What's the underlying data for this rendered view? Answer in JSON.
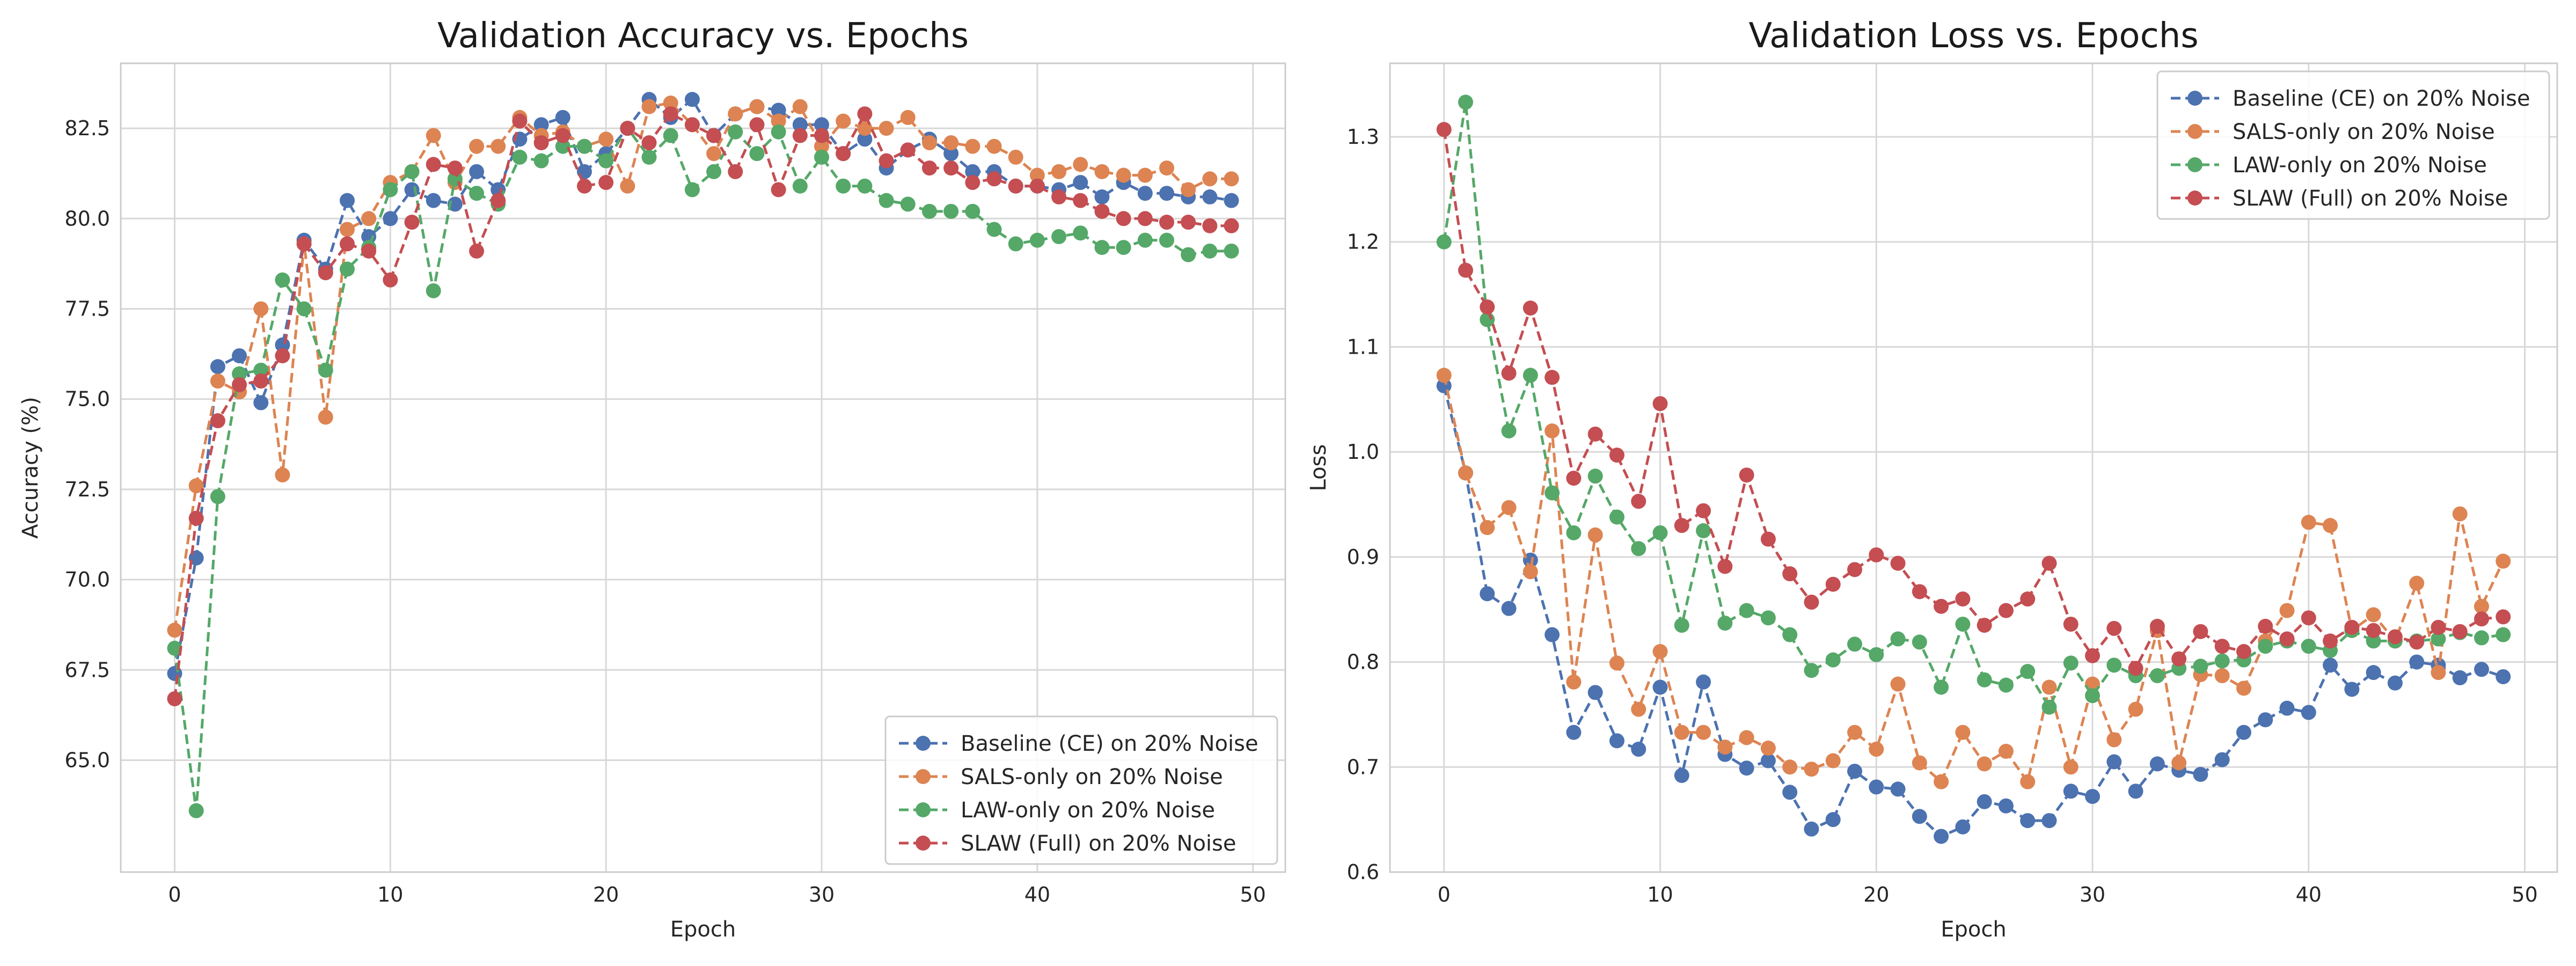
{
  "chart_data": [
    {
      "type": "line",
      "title": "Validation Accuracy vs. Epochs",
      "xlabel": "Epoch",
      "ylabel": "Accuracy (%)",
      "xlim": [
        -2.5,
        51.5
      ],
      "ylim": [
        61.9,
        84.3
      ],
      "xticks": [
        "0",
        "10",
        "20",
        "30",
        "40",
        "50"
      ],
      "yticks": [
        "65.0",
        "67.5",
        "70.0",
        "72.5",
        "75.0",
        "77.5",
        "80.0",
        "82.5"
      ],
      "grid": true,
      "legend_position": "lower-right",
      "series": [
        {
          "name": "Baseline (CE) on 20% Noise",
          "color": "#4c72b0",
          "values": [
            67.4,
            70.6,
            75.9,
            76.2,
            74.9,
            76.5,
            79.4,
            78.6,
            80.5,
            79.5,
            80.0,
            80.8,
            80.5,
            80.4,
            81.3,
            80.8,
            82.2,
            82.6,
            82.8,
            81.3,
            81.8,
            82.5,
            83.3,
            82.8,
            83.3,
            82.3,
            82.9,
            83.1,
            83.0,
            82.6,
            82.6,
            81.8,
            82.2,
            81.4,
            81.9,
            82.2,
            81.8,
            81.3,
            81.3,
            80.9,
            80.9,
            80.8,
            81.0,
            80.6,
            81.0,
            80.7,
            80.7,
            80.6,
            80.6,
            80.5
          ]
        },
        {
          "name": "SALS-only on 20% Noise",
          "color": "#dd8452",
          "values": [
            68.6,
            72.6,
            75.5,
            75.2,
            77.5,
            72.9,
            79.3,
            74.5,
            79.7,
            80.0,
            81.0,
            81.3,
            82.3,
            81.0,
            82.0,
            82.0,
            82.8,
            82.3,
            82.4,
            82.0,
            82.2,
            80.9,
            83.1,
            83.2,
            82.6,
            81.8,
            82.9,
            83.1,
            82.7,
            83.1,
            82.0,
            82.7,
            82.5,
            82.5,
            82.8,
            82.1,
            82.1,
            82.0,
            82.0,
            81.7,
            81.2,
            81.3,
            81.5,
            81.3,
            81.2,
            81.2,
            81.4,
            80.8,
            81.1,
            81.1
          ]
        },
        {
          "name": "LAW-only on 20% Noise",
          "color": "#55a868",
          "values": [
            68.1,
            63.6,
            72.3,
            75.7,
            75.8,
            78.3,
            77.5,
            75.8,
            78.6,
            79.2,
            80.8,
            81.3,
            78.0,
            81.1,
            80.7,
            80.4,
            81.7,
            81.6,
            82.0,
            82.0,
            81.6,
            82.5,
            81.7,
            82.3,
            80.8,
            81.3,
            82.4,
            81.8,
            82.4,
            80.9,
            81.7,
            80.9,
            80.9,
            80.5,
            80.4,
            80.2,
            80.2,
            80.2,
            79.7,
            79.3,
            79.4,
            79.5,
            79.6,
            79.2,
            79.2,
            79.4,
            79.4,
            79.0,
            79.1,
            79.1
          ]
        },
        {
          "name": "SLAW (Full) on 20% Noise",
          "color": "#c44e52",
          "values": [
            66.7,
            71.7,
            74.4,
            75.4,
            75.5,
            76.2,
            79.3,
            78.5,
            79.3,
            79.1,
            78.3,
            79.9,
            81.5,
            81.4,
            79.1,
            80.5,
            82.7,
            82.1,
            82.3,
            80.9,
            81.0,
            82.5,
            82.1,
            82.9,
            82.6,
            82.3,
            81.3,
            82.6,
            80.8,
            82.3,
            82.3,
            81.8,
            82.9,
            81.6,
            81.9,
            81.4,
            81.4,
            81.0,
            81.1,
            80.9,
            80.9,
            80.6,
            80.5,
            80.2,
            80.0,
            80.0,
            79.9,
            79.9,
            79.8,
            79.8
          ]
        }
      ]
    },
    {
      "type": "line",
      "title": "Validation Loss vs. Epochs",
      "xlabel": "Epoch",
      "ylabel": "Loss",
      "xlim": [
        -2.5,
        51.5
      ],
      "ylim": [
        0.6,
        1.37
      ],
      "xticks": [
        "0",
        "10",
        "20",
        "30",
        "40",
        "50"
      ],
      "yticks": [
        "0.6",
        "0.7",
        "0.8",
        "0.9",
        "1.0",
        "1.1",
        "1.2",
        "1.3"
      ],
      "grid": true,
      "legend_position": "upper-right",
      "series": [
        {
          "name": "Baseline (CE) on 20% Noise",
          "color": "#4c72b0",
          "values": [
            1.063,
            0.98,
            0.865,
            0.851,
            0.897,
            0.826,
            0.733,
            0.771,
            0.725,
            0.717,
            0.776,
            0.692,
            0.781,
            0.712,
            0.699,
            0.706,
            0.676,
            0.641,
            0.65,
            0.696,
            0.681,
            0.679,
            0.653,
            0.634,
            0.643,
            0.667,
            0.663,
            0.649,
            0.649,
            0.677,
            0.672,
            0.705,
            0.677,
            0.703,
            0.697,
            0.693,
            0.707,
            0.733,
            0.745,
            0.756,
            0.752,
            0.797,
            0.774,
            0.79,
            0.78,
            0.8,
            0.797,
            0.785,
            0.793,
            0.786
          ]
        },
        {
          "name": "SALS-only on 20% Noise",
          "color": "#dd8452",
          "values": [
            1.073,
            0.98,
            0.928,
            0.947,
            0.886,
            1.02,
            0.781,
            0.921,
            0.799,
            0.755,
            0.81,
            0.733,
            0.733,
            0.719,
            0.728,
            0.718,
            0.7,
            0.698,
            0.706,
            0.733,
            0.717,
            0.779,
            0.704,
            0.686,
            0.733,
            0.703,
            0.715,
            0.686,
            0.776,
            0.7,
            0.779,
            0.726,
            0.755,
            0.83,
            0.704,
            0.788,
            0.787,
            0.775,
            0.82,
            0.849,
            0.933,
            0.93,
            0.83,
            0.845,
            0.82,
            0.875,
            0.79,
            0.941,
            0.853,
            0.896
          ]
        },
        {
          "name": "LAW-only on 20% Noise",
          "color": "#55a868",
          "values": [
            1.2,
            1.333,
            1.126,
            1.02,
            1.073,
            0.961,
            0.923,
            0.977,
            0.938,
            0.908,
            0.923,
            0.835,
            0.925,
            0.837,
            0.849,
            0.842,
            0.826,
            0.792,
            0.802,
            0.817,
            0.807,
            0.822,
            0.819,
            0.776,
            0.836,
            0.783,
            0.778,
            0.791,
            0.757,
            0.799,
            0.768,
            0.797,
            0.787,
            0.787,
            0.794,
            0.796,
            0.801,
            0.802,
            0.815,
            0.82,
            0.815,
            0.811,
            0.83,
            0.82,
            0.82,
            0.82,
            0.822,
            0.828,
            0.823,
            0.826
          ]
        },
        {
          "name": "SLAW (Full) on 20% Noise",
          "color": "#c44e52",
          "values": [
            1.307,
            1.173,
            1.138,
            1.075,
            1.137,
            1.071,
            0.975,
            1.017,
            0.997,
            0.953,
            1.046,
            0.93,
            0.944,
            0.891,
            0.978,
            0.917,
            0.884,
            0.857,
            0.874,
            0.888,
            0.902,
            0.894,
            0.867,
            0.853,
            0.86,
            0.835,
            0.849,
            0.86,
            0.894,
            0.836,
            0.806,
            0.832,
            0.794,
            0.834,
            0.803,
            0.829,
            0.815,
            0.81,
            0.834,
            0.822,
            0.842,
            0.82,
            0.833,
            0.83,
            0.824,
            0.819,
            0.833,
            0.829,
            0.841,
            0.843
          ]
        }
      ]
    }
  ]
}
